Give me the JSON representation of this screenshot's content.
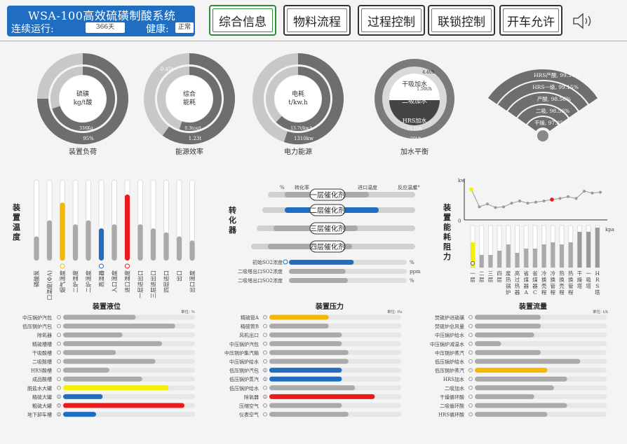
{
  "header": {
    "title": "WSA-100高效硫磺制酸系统",
    "run_label": "连续运行:",
    "run_days": "366天",
    "health_label": "健康:",
    "health_status": "正常",
    "accent": "#1f6ec2"
  },
  "nav": {
    "tabs": [
      "综合信息",
      "物料流程",
      "过程控制",
      "联锁控制",
      "开车允许"
    ],
    "active_index": 0,
    "speaker_icon": "speaker-icon"
  },
  "gauges": [
    {
      "center1": "硫磺",
      "center2": "kg/t酸",
      "inner_label": "336Kg",
      "outer_label": "95%",
      "caption": "装置负荷",
      "inner": 0.7,
      "outer": 0.75
    },
    {
      "center1": "综合",
      "center2": "能耗",
      "top_label": "0.45t",
      "inner_label": "0.3tce/t",
      "outer_label": "1.23t",
      "caption": "能源效率",
      "inner": 0.55,
      "outer": 0.6
    },
    {
      "center1": "电耗",
      "center2": "t/kw.h",
      "inner_label": "13.7t/kw.h",
      "outer_label": "1310kw",
      "caption": "电力能源",
      "inner": 0.62,
      "outer": 0.55
    },
    {
      "c1": "干吸加水",
      "c2": "二吸加水",
      "c3": "HRS加水",
      "l1": "4.4t/h",
      "l2": "1.50t/h",
      "l3": "15.1t/h",
      "l4": "20t/h",
      "caption": "加水平衡"
    }
  ],
  "fan": [
    {
      "label": "HRS产酸, 99.54%",
      "value": 0.9954
    },
    {
      "label": "HRS一级, 99.15%",
      "value": 0.9915
    },
    {
      "label": "产酸, 98.56%",
      "value": 0.9856
    },
    {
      "label": "二吸, 98.56%",
      "value": 0.9856
    },
    {
      "label": "干燥, 97.85%",
      "value": 0.9785
    }
  ],
  "temperature": {
    "title": "装置温度",
    "bars": [
      {
        "label": "磷酸泵",
        "level": 0.3,
        "color": "#aaaaaa",
        "alert": false
      },
      {
        "label": "口温度(ΦA)",
        "level": 0.5,
        "color": "#aaaaaa",
        "alert": false
      },
      {
        "label": "烟气温度",
        "level": 0.72,
        "color": "#f5b800",
        "alert": true
      },
      {
        "label": "二炉温度",
        "level": 0.45,
        "color": "#aaaaaa",
        "alert": false
      },
      {
        "label": "二炉温度",
        "level": 0.5,
        "color": "#aaaaaa",
        "alert": false
      },
      {
        "label": "高温器",
        "level": 0.4,
        "color": "#1f6ec2",
        "alert": true
      },
      {
        "label": "入口温度",
        "level": 0.45,
        "color": "#aaaaaa",
        "alert": false
      },
      {
        "label": "进口温度",
        "level": 0.82,
        "color": "#e81c1c",
        "alert": true
      },
      {
        "label": "一层进出口",
        "level": 0.45,
        "color": "#aaaaaa",
        "alert": false
      },
      {
        "label": "三层进出口",
        "level": 0.4,
        "color": "#aaaaaa",
        "alert": false
      },
      {
        "label": "四层进口",
        "level": 0.35,
        "color": "#aaaaaa",
        "alert": false
      },
      {
        "label": "出口",
        "level": 0.3,
        "color": "#aaaaaa",
        "alert": false
      },
      {
        "label": "出口温度",
        "level": 0.25,
        "color": "#aaaaaa",
        "alert": false
      }
    ]
  },
  "converter": {
    "title": "转化器",
    "header": [
      "%",
      "转化率",
      "进口温度",
      "反应温度",
      "C°"
    ],
    "layers": [
      "一层催化剂",
      "二层催化剂",
      "三层催化剂",
      "四层催化剂"
    ],
    "readings": [
      {
        "label": "初始SO2浓度",
        "value": 0.55,
        "color": "#1f6ec2",
        "unit": "%"
      },
      {
        "label": "二吸塔出口SO2浓度",
        "value": 0.48,
        "color": "#aaaaaa",
        "unit": "ppm"
      },
      {
        "label": "二吸塔出口SO2浓度",
        "value": 0.5,
        "color": "#aaaaaa",
        "unit": "%"
      }
    ]
  },
  "resistance": {
    "title": "装置能耗阻力",
    "y_label": "kw",
    "zero": "0",
    "unit": "kpa",
    "line": [
      0.8,
      0.32,
      0.4,
      0.3,
      0.32,
      0.42,
      0.48,
      0.42,
      0.45,
      0.48,
      0.52,
      0.55,
      0.6,
      0.55,
      0.75,
      0.7,
      0.72
    ],
    "bars": [
      {
        "label": "一层",
        "level": 0.6,
        "color": "#f5f000",
        "alert": true
      },
      {
        "label": "二层",
        "level": 0.3,
        "color": "#aaaaaa",
        "alert": false
      },
      {
        "label": "三层",
        "level": 0.3,
        "color": "#aaaaaa",
        "alert": false
      },
      {
        "label": "四层",
        "level": 0.4,
        "color": "#aaaaaa",
        "alert": false
      },
      {
        "label": "废热锅炉",
        "level": 0.55,
        "color": "#aaaaaa",
        "alert": false
      },
      {
        "label": "高过热器",
        "level": 0.35,
        "color": "#aaaaaa",
        "alert": false
      },
      {
        "label": "省煤器A",
        "level": 0.45,
        "color": "#aaaaaa",
        "alert": false
      },
      {
        "label": "省煤器C",
        "level": 0.45,
        "color": "#aaaaaa",
        "alert": false
      },
      {
        "label": "冷换壳程",
        "level": 0.55,
        "color": "#aaaaaa",
        "alert": false
      },
      {
        "label": "冷换管程",
        "level": 0.6,
        "color": "#aaaaaa",
        "alert": false
      },
      {
        "label": "热换壳程",
        "level": 0.55,
        "color": "#aaaaaa",
        "alert": false
      },
      {
        "label": "热换管程",
        "level": 0.6,
        "color": "#aaaaaa",
        "alert": false
      },
      {
        "label": "干燥塔",
        "level": 0.85,
        "color": "#999999",
        "alert": false
      },
      {
        "label": "一吸塔",
        "level": 0.85,
        "color": "#999999",
        "alert": false
      },
      {
        "label": "HRS塔",
        "level": 0.95,
        "color": "#999999",
        "alert": false
      }
    ]
  },
  "level": {
    "title": "装置液位",
    "unit": "单位: %",
    "rows": [
      {
        "label": "中压锅炉汽包",
        "value": 0.55,
        "color": "#aaaaaa",
        "alert": ""
      },
      {
        "label": "低压锅炉汽包",
        "value": 0.85,
        "color": "#aaaaaa",
        "alert": ""
      },
      {
        "label": "除氧器",
        "value": 0.45,
        "color": "#aaaaaa",
        "alert": ""
      },
      {
        "label": "精硫槽槽",
        "value": 0.75,
        "color": "#aaaaaa",
        "alert": ""
      },
      {
        "label": "干吸酸槽",
        "value": 0.4,
        "color": "#aaaaaa",
        "alert": ""
      },
      {
        "label": "二吸酸槽",
        "value": 0.7,
        "color": "#aaaaaa",
        "alert": ""
      },
      {
        "label": "HRS酸槽",
        "value": 0.35,
        "color": "#aaaaaa",
        "alert": ""
      },
      {
        "label": "成品酸槽",
        "value": 0.6,
        "color": "#aaaaaa",
        "alert": ""
      },
      {
        "label": "脱盐水大罐",
        "value": 0.8,
        "color": "#f5f000",
        "alert": "!"
      },
      {
        "label": "精硫大罐",
        "value": 0.3,
        "color": "#1f6ec2",
        "alert": "i"
      },
      {
        "label": "粗硫大罐",
        "value": 0.92,
        "color": "#e81c1c",
        "alert": "!"
      },
      {
        "label": "地下卸车槽",
        "value": 0.25,
        "color": "#1f6ec2",
        "alert": "i"
      }
    ]
  },
  "pressure": {
    "title": "装置压力",
    "unit": "单位: Pa",
    "rows": [
      {
        "label": "精硫管A",
        "value": 0.45,
        "color": "#f5b800",
        "alert": "!"
      },
      {
        "label": "精硫管B",
        "value": 0.45,
        "color": "#aaaaaa",
        "alert": ""
      },
      {
        "label": "风机出口",
        "value": 0.55,
        "color": "#aaaaaa",
        "alert": ""
      },
      {
        "label": "中压锅炉汽包",
        "value": 0.55,
        "color": "#aaaaaa",
        "alert": ""
      },
      {
        "label": "中压锅炉集汽箱",
        "value": 0.6,
        "color": "#aaaaaa",
        "alert": ""
      },
      {
        "label": "中压锅炉给水",
        "value": 0.6,
        "color": "#aaaaaa",
        "alert": ""
      },
      {
        "label": "低压锅炉汽包",
        "value": 0.55,
        "color": "#1f6ec2",
        "alert": "i"
      },
      {
        "label": "低压锅炉蒸汽",
        "value": 0.55,
        "color": "#1f6ec2",
        "alert": "i"
      },
      {
        "label": "低压锅炉给水",
        "value": 0.65,
        "color": "#aaaaaa",
        "alert": ""
      },
      {
        "label": "除氧器",
        "value": 0.8,
        "color": "#e81c1c",
        "alert": "i"
      },
      {
        "label": "压缩空气",
        "value": 0.55,
        "color": "#aaaaaa",
        "alert": ""
      },
      {
        "label": "仪表空气",
        "value": 0.6,
        "color": "#aaaaaa",
        "alert": ""
      }
    ]
  },
  "flow": {
    "title": "装置流量",
    "unit": "单位: t/h",
    "rows": [
      {
        "label": "焚硫炉进硫磺",
        "value": 0.5,
        "color": "#aaaaaa",
        "alert": ""
      },
      {
        "label": "焚硫炉总风量",
        "value": 0.5,
        "color": "#aaaaaa",
        "alert": ""
      },
      {
        "label": "中压锅炉给水",
        "value": 0.45,
        "color": "#aaaaaa",
        "alert": ""
      },
      {
        "label": "中压锅炉减温水",
        "value": 0.2,
        "color": "#aaaaaa",
        "alert": ""
      },
      {
        "label": "中压锅炉蒸汽",
        "value": 0.5,
        "color": "#aaaaaa",
        "alert": ""
      },
      {
        "label": "低压锅炉给水",
        "value": 0.8,
        "color": "#aaaaaa",
        "alert": ""
      },
      {
        "label": "低压锅炉蒸汽",
        "value": 0.55,
        "color": "#f5b800",
        "alert": "!"
      },
      {
        "label": "HRS加水",
        "value": 0.7,
        "color": "#aaaaaa",
        "alert": ""
      },
      {
        "label": "二吸加水",
        "value": 0.6,
        "color": "#aaaaaa",
        "alert": ""
      },
      {
        "label": "干燥循环酸",
        "value": 0.45,
        "color": "#aaaaaa",
        "alert": ""
      },
      {
        "label": "二吸循环酸",
        "value": 0.7,
        "color": "#aaaaaa",
        "alert": ""
      },
      {
        "label": "HRS循环酸",
        "value": 0.55,
        "color": "#aaaaaa",
        "alert": ""
      }
    ]
  }
}
